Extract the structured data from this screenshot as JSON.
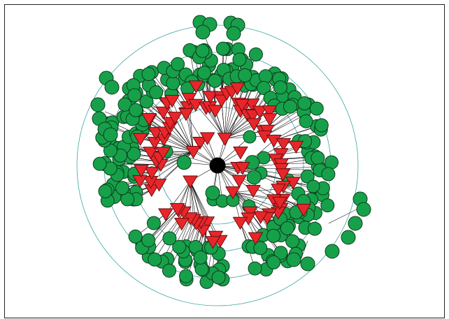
{
  "colors": {
    "background": "#ffffff",
    "frame": "#222222",
    "ring": "#3aa6a0",
    "edge": "#000000",
    "root": "#000000",
    "circle_node_fill": "#17a04a",
    "circle_node_stroke": "#0a3d1c",
    "triangle_node_fill": "#e8262a",
    "triangle_node_stroke": "#6b0d10"
  },
  "diagram": {
    "type": "radial-tree",
    "ring_count": 4,
    "node_shapes": [
      "circle",
      "inverted-triangle"
    ],
    "root_shape": "circle",
    "edges": "directed"
  }
}
